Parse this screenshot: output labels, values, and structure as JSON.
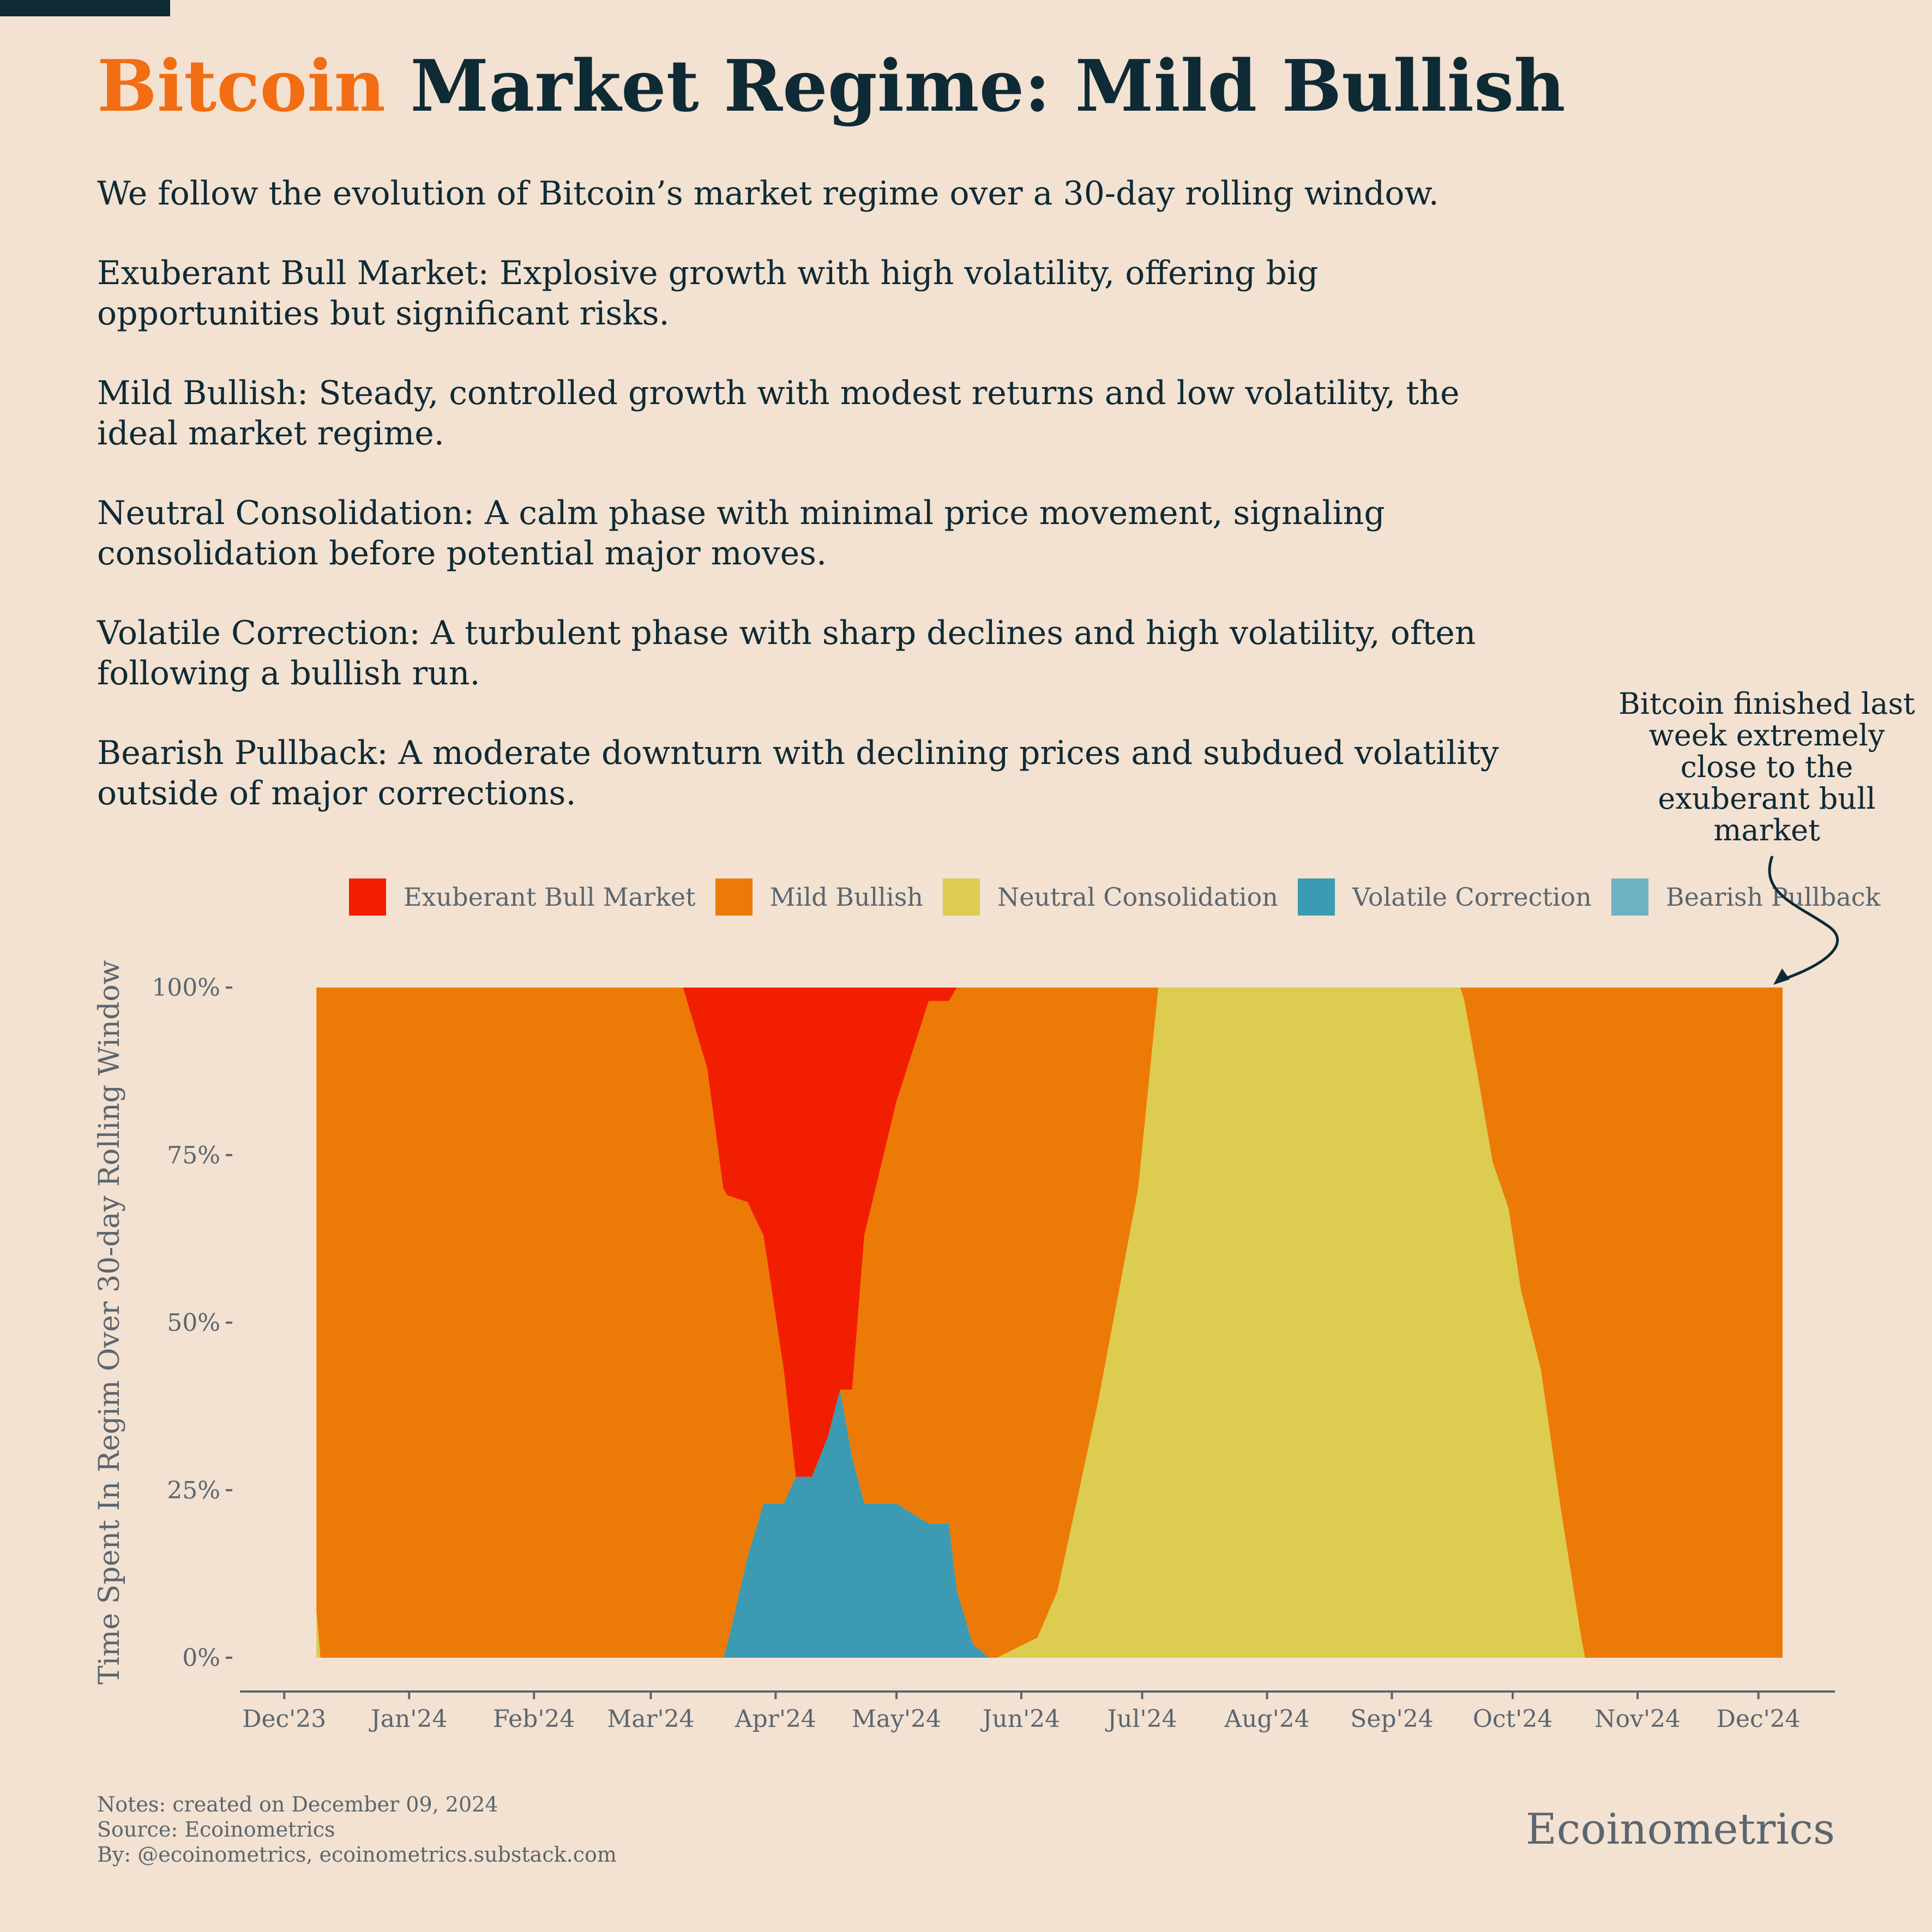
{
  "title": {
    "highlight": "Bitcoin",
    "rest": "Market Regime: Mild Bullish"
  },
  "description": [
    "We follow the evolution of Bitcoin’s market regime over a 30-day rolling window.",
    "Exuberant Bull Market: Explosive growth with high volatility, offering big opportunities but significant risks.",
    "Mild Bullish: Steady, controlled growth with modest returns and low volatility, the ideal market regime.",
    "Neutral Consolidation: A calm phase with minimal price movement, signaling consolidation before potential major moves.",
    "Volatile Correction: A turbulent phase with sharp declines and high volatility, often following a bullish run.",
    "Bearish Pullback: A moderate downturn with declining prices and subdued volatility outside of major corrections."
  ],
  "annotation": "Bitcoin finished last week extremely close to the exuberant bull market",
  "notes": {
    "line1": "Notes: created on December 09, 2024",
    "line2": "Source: Ecoinometrics",
    "line3": "By: @ecoinometrics, ecoinometrics.substack.com"
  },
  "brand": "Ecoinometrics",
  "colors": {
    "background": "#f3e1d1",
    "title_dark": "#0e2a35",
    "title_accent": "#f26d13",
    "axis_text": "#5a6670"
  },
  "chart_data": {
    "type": "area",
    "stacked": true,
    "normalized": true,
    "ylabel": "Time Spent In Regim Over 30-day Rolling Window",
    "ylim": [
      0,
      100
    ],
    "yticks": [
      0,
      25,
      50,
      75,
      100
    ],
    "ytick_labels": [
      "0%",
      "25%",
      "50%",
      "75%",
      "100%"
    ],
    "xlim": [
      "2023-11-20",
      "2024-12-20"
    ],
    "xticks": [
      "2023-12-01",
      "2024-01-01",
      "2024-02-01",
      "2024-03-01",
      "2024-04-01",
      "2024-05-01",
      "2024-06-01",
      "2024-07-01",
      "2024-08-01",
      "2024-09-01",
      "2024-10-01",
      "2024-11-01",
      "2024-12-01"
    ],
    "xtick_labels": [
      "Dec'23",
      "Jan'24",
      "Feb'24",
      "Mar'24",
      "Apr'24",
      "May'24",
      "Jun'24",
      "Jul'24",
      "Aug'24",
      "Sep'24",
      "Oct'24",
      "Nov'24",
      "Dec'24"
    ],
    "legend_position": "top",
    "series_order_bottom_to_top": [
      "Bearish Pullback",
      "Volatile Correction",
      "Neutral Consolidation",
      "Mild Bullish",
      "Exuberant Bull Market"
    ],
    "series": [
      {
        "name": "Exuberant Bull Market",
        "color": "#f21e02"
      },
      {
        "name": "Mild Bullish",
        "color": "#ec7a06"
      },
      {
        "name": "Neutral Consolidation",
        "color": "#dccc50"
      },
      {
        "name": "Volatile Correction",
        "color": "#3c9ab2"
      },
      {
        "name": "Bearish Pullback",
        "color": "#6fb2c2"
      }
    ],
    "x": [
      "2023-12-09",
      "2023-12-10",
      "2024-03-09",
      "2024-03-15",
      "2024-03-19",
      "2024-03-20",
      "2024-03-25",
      "2024-03-29",
      "2024-04-03",
      "2024-04-06",
      "2024-04-10",
      "2024-04-14",
      "2024-04-17",
      "2024-04-20",
      "2024-04-23",
      "2024-05-01",
      "2024-05-09",
      "2024-05-14",
      "2024-05-16",
      "2024-05-20",
      "2024-05-24",
      "2024-05-26",
      "2024-06-05",
      "2024-06-10",
      "2024-06-20",
      "2024-06-30",
      "2024-07-05",
      "2024-07-20",
      "2024-08-05",
      "2024-08-20",
      "2024-09-05",
      "2024-09-18",
      "2024-09-19",
      "2024-09-22",
      "2024-09-26",
      "2024-09-30",
      "2024-10-03",
      "2024-10-08",
      "2024-10-13",
      "2024-10-18",
      "2024-10-19",
      "2024-11-01",
      "2024-11-20",
      "2024-12-07"
    ],
    "values": {
      "Bearish Pullback": [
        0,
        0,
        0,
        0,
        0,
        0,
        0,
        0,
        0,
        0,
        0,
        0,
        0,
        0,
        0,
        0,
        0,
        0,
        0,
        0,
        0,
        0,
        0,
        0,
        0,
        0,
        0,
        0,
        0,
        0,
        0,
        0,
        0,
        0,
        0,
        0,
        0,
        0,
        0,
        0,
        0,
        0,
        0,
        0
      ],
      "Volatile Correction": [
        0,
        0,
        0,
        0,
        0,
        2,
        15,
        23,
        23,
        27,
        27,
        33,
        40,
        30,
        23,
        23,
        20,
        20,
        10,
        2,
        0,
        0,
        0,
        0,
        0,
        0,
        0,
        0,
        0,
        0,
        0,
        0,
        0,
        0,
        0,
        0,
        0,
        0,
        0,
        0,
        0,
        0,
        0,
        0
      ],
      "Neutral Consolidation": [
        7,
        0,
        0,
        0,
        0,
        0,
        0,
        0,
        0,
        0,
        0,
        0,
        0,
        0,
        0,
        0,
        0,
        0,
        0,
        0,
        0,
        0,
        3,
        10,
        38,
        70,
        100,
        100,
        100,
        100,
        100,
        100,
        98,
        88,
        74,
        67,
        55,
        43,
        22,
        3,
        0,
        0,
        0,
        0
      ],
      "Mild Bullish": [
        93,
        100,
        100,
        88,
        70,
        67,
        53,
        40,
        20,
        0,
        0,
        0,
        0,
        10,
        40,
        60,
        78,
        78,
        90,
        98,
        100,
        100,
        97,
        90,
        62,
        30,
        0,
        0,
        0,
        0,
        0,
        0,
        2,
        12,
        26,
        33,
        45,
        57,
        78,
        97,
        100,
        100,
        100,
        100
      ],
      "Exuberant Bull Market": [
        0,
        0,
        0,
        12,
        30,
        31,
        32,
        37,
        57,
        73,
        73,
        67,
        60,
        60,
        37,
        17,
        2,
        2,
        0,
        0,
        0,
        0,
        0,
        0,
        0,
        0,
        0,
        0,
        0,
        0,
        0,
        0,
        0,
        0,
        0,
        0,
        0,
        0,
        0,
        0,
        0,
        0,
        0,
        0
      ]
    }
  }
}
